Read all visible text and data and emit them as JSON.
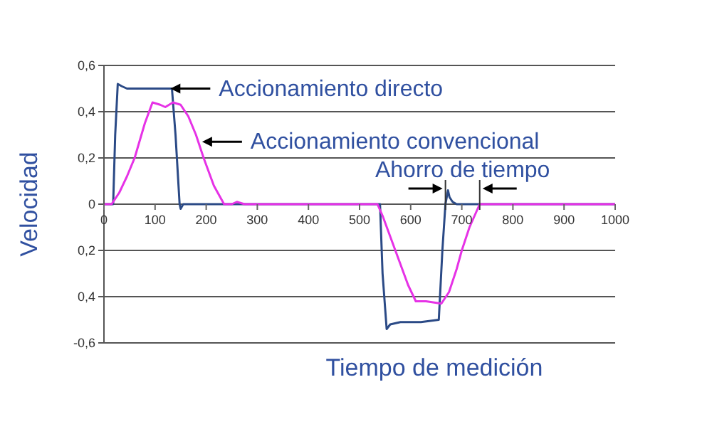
{
  "chart_data": {
    "type": "line",
    "xlabel": "Tiempo de medición",
    "ylabel": "Velocidad",
    "xlim": [
      0,
      1000
    ],
    "xticks": [
      0,
      100,
      200,
      300,
      400,
      500,
      600,
      700,
      800,
      900,
      1000
    ],
    "ylim": [
      -0.6,
      0.6
    ],
    "yticks": [
      {
        "value": -0.6,
        "label": "-0,6"
      },
      {
        "value": -0.4,
        "label": "0,4"
      },
      {
        "value": -0.2,
        "label": "0,2"
      },
      {
        "value": 0,
        "label": "0"
      },
      {
        "value": 0.2,
        "label": "0,2"
      },
      {
        "value": 0.4,
        "label": "0,4"
      },
      {
        "value": 0.6,
        "label": "0,6"
      }
    ],
    "grid": "y",
    "legend": false,
    "marker": "none",
    "line_style": "solid",
    "series": [
      {
        "color": "#2b4a86",
        "x": [
          0,
          18,
          22,
          27,
          35,
          45,
          80,
          120,
          133,
          140,
          148,
          150,
          155,
          540,
          545,
          553,
          560,
          580,
          620,
          655,
          662,
          668,
          673,
          676,
          682,
          690,
          700,
          1000
        ],
        "values": [
          0,
          0,
          0.3,
          0.52,
          0.51,
          0.5,
          0.5,
          0.5,
          0.5,
          0.3,
          0,
          -0.02,
          0,
          0,
          -0.3,
          -0.54,
          -0.52,
          -0.51,
          -0.51,
          -0.5,
          -0.2,
          0,
          0.06,
          0.03,
          0.01,
          0,
          0,
          0
        ]
      },
      {
        "color": "#e632e6",
        "x": [
          0,
          15,
          30,
          45,
          60,
          80,
          95,
          110,
          120,
          135,
          150,
          165,
          180,
          195,
          215,
          235,
          250,
          260,
          275,
          535,
          545,
          570,
          595,
          610,
          630,
          660,
          675,
          690,
          700,
          715,
          725,
          735,
          1000
        ],
        "values": [
          0,
          0,
          0.05,
          0.12,
          0.2,
          0.35,
          0.44,
          0.43,
          0.42,
          0.44,
          0.43,
          0.38,
          0.3,
          0.2,
          0.08,
          0,
          0,
          0.01,
          0,
          0,
          -0.05,
          -0.2,
          -0.35,
          -0.42,
          -0.42,
          -0.43,
          -0.38,
          -0.28,
          -0.2,
          -0.1,
          -0.05,
          0,
          0
        ]
      }
    ],
    "annotations": [
      {
        "text": "Accionamiento directo",
        "x": 130,
        "y": 0.5
      },
      {
        "text": "Accionamiento convencional",
        "x": 192,
        "y": 0.27
      },
      "Ahorro de tiempo"
    ]
  }
}
